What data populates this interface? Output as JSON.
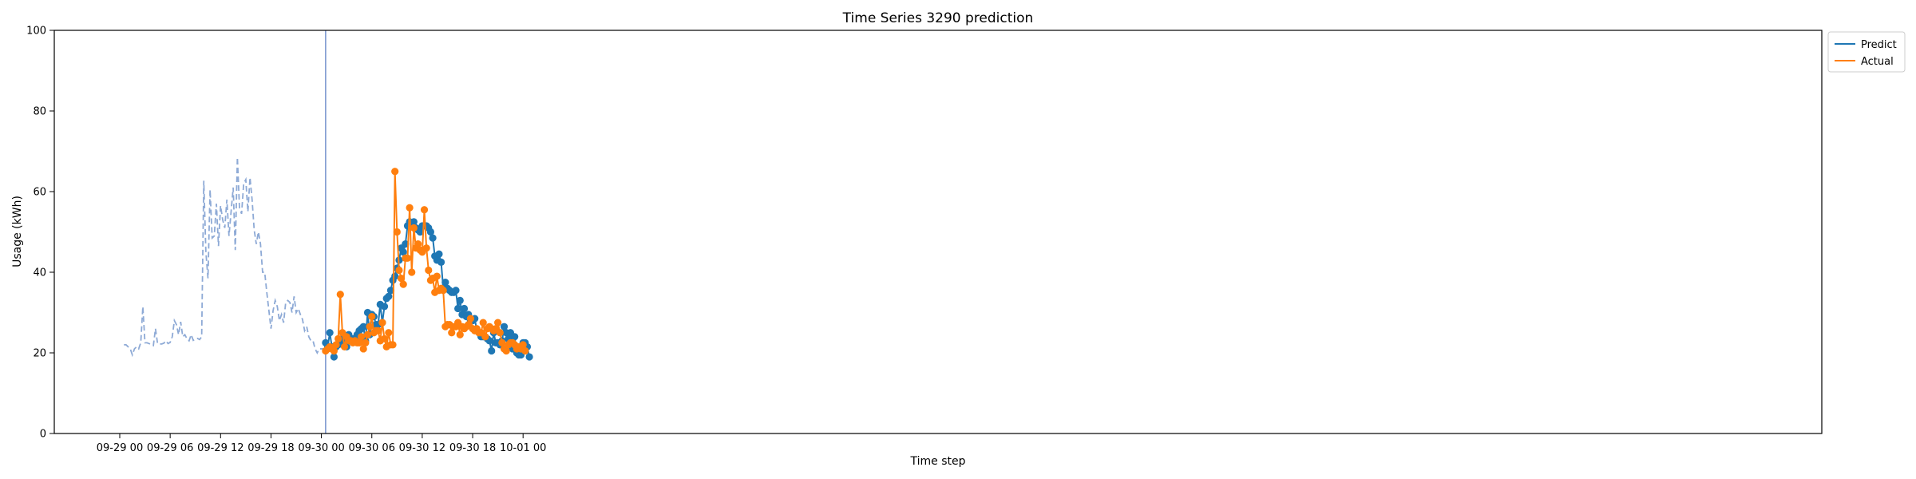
{
  "chart_data": {
    "type": "line",
    "title": "Time Series 3290 prediction",
    "xlabel": "Time step",
    "ylabel": "Usage (kWh)",
    "ylim": [
      0,
      100
    ],
    "yticks": [
      "0",
      "20",
      "40",
      "60",
      "80",
      "100"
    ],
    "xticks": [
      "09-29 00",
      "09-29 06",
      "09-29 12",
      "09-29 18",
      "09-30 00",
      "09-30 06",
      "09-30 12",
      "09-30 18",
      "10-01 00"
    ],
    "x_start": "2023-09-29 00:00",
    "x_end": "2023-10-01 00:00",
    "grid": false,
    "legend_position": "top-right-outside",
    "forecast_start_hour": 24.5,
    "history": {
      "color": "#8eaad6",
      "style": "dashed",
      "start_hour": 0.5,
      "step_hours": 0.25,
      "values": [
        22,
        22,
        21.5,
        21,
        19.5,
        21,
        21.5,
        21,
        22.5,
        31.5,
        22.5,
        22.5,
        22.3,
        22,
        21.8,
        26,
        22.3,
        22.2,
        22.2,
        22.4,
        23,
        22.3,
        22.6,
        24,
        28,
        27,
        24.5,
        27.7,
        24,
        24.5,
        23.5,
        23,
        24.5,
        23.1,
        23.4,
        23.6,
        23.3,
        24,
        62.7,
        45,
        38.5,
        60.5,
        48.5,
        49,
        57,
        46.5,
        56.5,
        53,
        51,
        58,
        49,
        55,
        61,
        45.5,
        68.5,
        56,
        54.5,
        62,
        63,
        55,
        63.5,
        58,
        50.5,
        47,
        50,
        47,
        40,
        40,
        35,
        30.5,
        26,
        30.5,
        33,
        31.5,
        28,
        29.5,
        27.5,
        32.5,
        33,
        32.5,
        30,
        34,
        30,
        31,
        29.5,
        28.3,
        25.5,
        26.5,
        24,
        23,
        23,
        21,
        20,
        21,
        21,
        21,
        21,
        21,
        22,
        21,
        20.5
      ]
    },
    "series": [
      {
        "name": "Predict",
        "color": "#1f77b4",
        "start_hour": 24.5,
        "step_hours": 0.25,
        "values": [
          22.5,
          21.5,
          25,
          21.5,
          19,
          21.5,
          22,
          22.5,
          23.5,
          23,
          21.5,
          24.5,
          23.5,
          23.5,
          23.5,
          24.5,
          25.5,
          26,
          26.5,
          23,
          30,
          24.5,
          29.5,
          29,
          27,
          27,
          32,
          27.5,
          31.5,
          33.5,
          34,
          35.5,
          38,
          39,
          41,
          43,
          46,
          45,
          47,
          51.5,
          52.5,
          51.5,
          52.5,
          51,
          50.5,
          50,
          51.5,
          51.5,
          51.5,
          51,
          50,
          48.5,
          44,
          43,
          44.5,
          42.5,
          36,
          37.5,
          36,
          35.5,
          35,
          35,
          35.5,
          31,
          33,
          29.5,
          31,
          29,
          29.5,
          28,
          28,
          28.5,
          25.5,
          25,
          24,
          24,
          24,
          23.5,
          23,
          20.5,
          25,
          22.5,
          22.5,
          22,
          23,
          26.5,
          25,
          23.5,
          25,
          21,
          24,
          20,
          19.5,
          19.5,
          22.5,
          22.5,
          21.5,
          19
        ]
      },
      {
        "name": "Actual",
        "color": "#ff7f0e",
        "start_hour": 24.5,
        "step_hours": 0.25,
        "values": [
          20.5,
          21,
          21.5,
          21,
          20.5,
          22,
          23.5,
          34.5,
          25,
          21.5,
          24,
          23,
          23,
          22.5,
          23,
          22.5,
          22.5,
          24,
          21,
          22.5,
          24.5,
          26.5,
          29,
          25,
          25.5,
          25.5,
          23,
          27.5,
          23.5,
          21.5,
          25,
          22,
          22,
          65,
          50,
          40.5,
          38.5,
          37,
          43.5,
          43.5,
          56,
          40,
          51,
          46,
          47,
          45.5,
          45,
          55.5,
          46,
          40.5,
          38,
          38.5,
          35,
          39,
          35.5,
          36,
          35.5,
          26.5,
          27,
          27,
          25,
          26.5,
          26.5,
          27.5,
          24.5,
          26.5,
          26,
          26.5,
          27,
          28.5,
          26,
          25.5,
          26,
          25,
          25,
          27.5,
          24,
          26,
          26.5,
          26,
          25.5,
          26,
          27.5,
          25,
          22.5,
          21,
          20.5,
          22,
          22.5,
          22.5,
          22,
          21,
          21.5,
          21,
          22,
          20.5
        ]
      }
    ]
  }
}
